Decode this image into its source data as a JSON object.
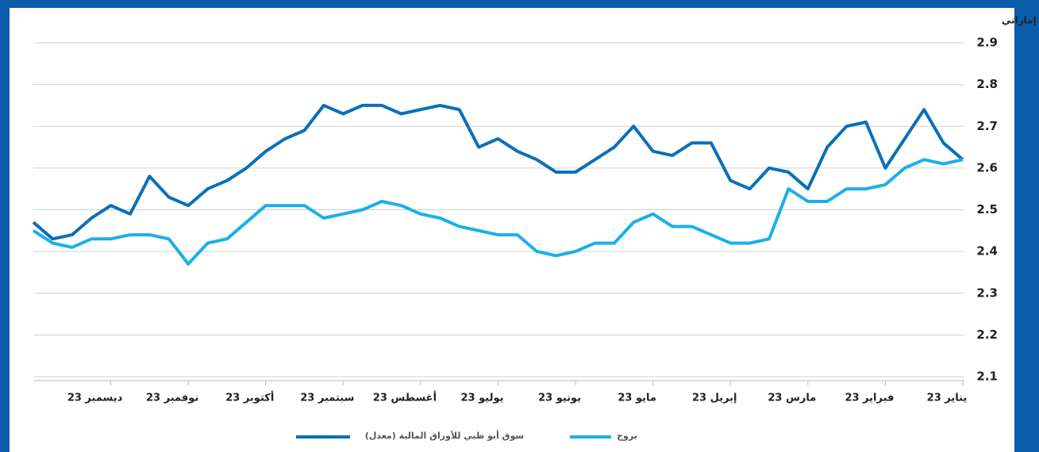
{
  "chart_data": {
    "type": "line",
    "y_label": "درهم إماراتي",
    "categories": [
      "يناير 23",
      null,
      null,
      null,
      "فبراير 23",
      null,
      null,
      null,
      "مارس 23",
      null,
      null,
      null,
      "إبريل 23",
      null,
      null,
      null,
      "مايو 23",
      null,
      null,
      null,
      "يونيو 23",
      null,
      null,
      null,
      "يوليو 23",
      null,
      null,
      null,
      "أغسطس 23",
      null,
      null,
      null,
      "سبتمبر 23",
      null,
      null,
      null,
      "أكتوبر 23",
      null,
      null,
      null,
      "نوفمبر 23",
      null,
      null,
      null,
      "ديسمبر 23",
      null,
      null,
      null,
      null
    ],
    "x_reversed": true,
    "series": [
      {
        "name": "سوق أبو ظبي للأوراق المالية (معدل)",
        "color": "#0b6fb8",
        "values": [
          2.62,
          2.66,
          2.74,
          2.67,
          2.6,
          2.71,
          2.7,
          2.65,
          2.55,
          2.59,
          2.6,
          2.55,
          2.57,
          2.66,
          2.66,
          2.63,
          2.64,
          2.7,
          2.65,
          2.62,
          2.59,
          2.59,
          2.62,
          2.64,
          2.67,
          2.65,
          2.74,
          2.75,
          2.74,
          2.73,
          2.75,
          2.75,
          2.73,
          2.75,
          2.69,
          2.67,
          2.64,
          2.6,
          2.57,
          2.55,
          2.51,
          2.53,
          2.58,
          2.49,
          2.51,
          2.48,
          2.44,
          2.43,
          2.47
        ]
      },
      {
        "name": "بروج",
        "color": "#1ab0e8",
        "values": [
          2.62,
          2.61,
          2.62,
          2.6,
          2.56,
          2.55,
          2.55,
          2.52,
          2.52,
          2.55,
          2.43,
          2.42,
          2.42,
          2.44,
          2.46,
          2.46,
          2.49,
          2.47,
          2.42,
          2.42,
          2.4,
          2.39,
          2.4,
          2.44,
          2.44,
          2.45,
          2.46,
          2.48,
          2.49,
          2.51,
          2.52,
          2.5,
          2.49,
          2.48,
          2.51,
          2.51,
          2.51,
          2.47,
          2.43,
          2.42,
          2.37,
          2.43,
          2.44,
          2.44,
          2.43,
          2.43,
          2.41,
          2.42,
          2.45
        ]
      }
    ],
    "ylim": [
      2.1,
      2.9
    ],
    "yticks": [
      2.1,
      2.2,
      2.3,
      2.4,
      2.5,
      2.6,
      2.7,
      2.8,
      2.9
    ],
    "grid": true,
    "legend": "bottom"
  }
}
